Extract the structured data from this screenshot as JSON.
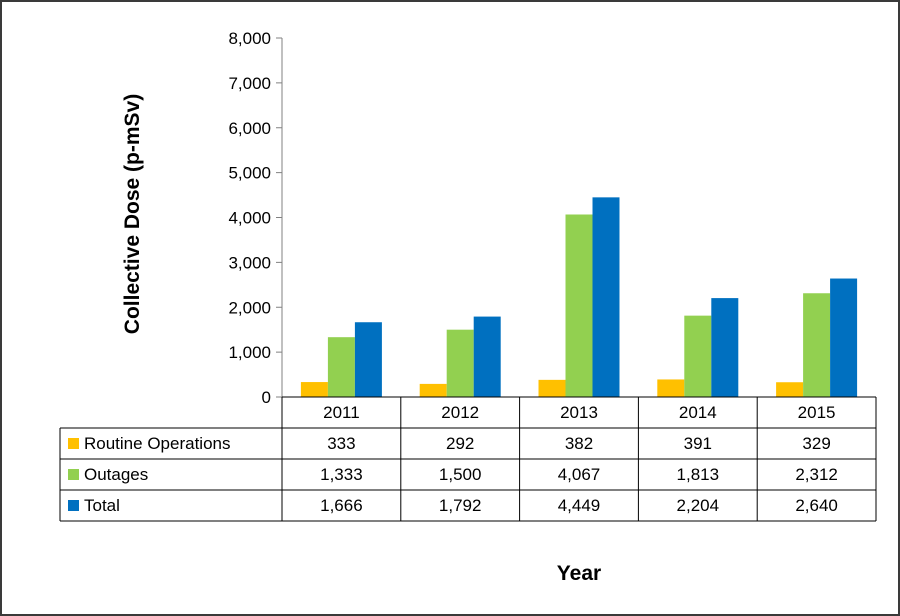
{
  "chart_data": {
    "type": "bar",
    "categories": [
      "2011",
      "2012",
      "2013",
      "2014",
      "2015"
    ],
    "series": [
      {
        "name": "Routine Operations",
        "color": "#FFC000",
        "values": [
          333,
          292,
          382,
          391,
          329
        ],
        "labels": [
          "333",
          "292",
          "382",
          "391",
          "329"
        ]
      },
      {
        "name": "Outages",
        "color": "#92D050",
        "values": [
          1333,
          1500,
          4067,
          1813,
          2312
        ],
        "labels": [
          "1,333",
          "1,500",
          "4,067",
          "1,813",
          "2,312"
        ]
      },
      {
        "name": "Total",
        "color": "#0070C0",
        "values": [
          1666,
          1792,
          4449,
          2204,
          2640
        ],
        "labels": [
          "1,666",
          "1,792",
          "4,449",
          "2,204",
          "2,640"
        ]
      }
    ],
    "ylabel": "Collective Dose (p-mSv)",
    "xlabel": "Year",
    "ylim": [
      0,
      8000
    ],
    "yticks": [
      "0",
      "1,000",
      "2,000",
      "3,000",
      "4,000",
      "5,000",
      "6,000",
      "7,000",
      "8,000"
    ],
    "grid": false,
    "legend": "data-table-left"
  }
}
